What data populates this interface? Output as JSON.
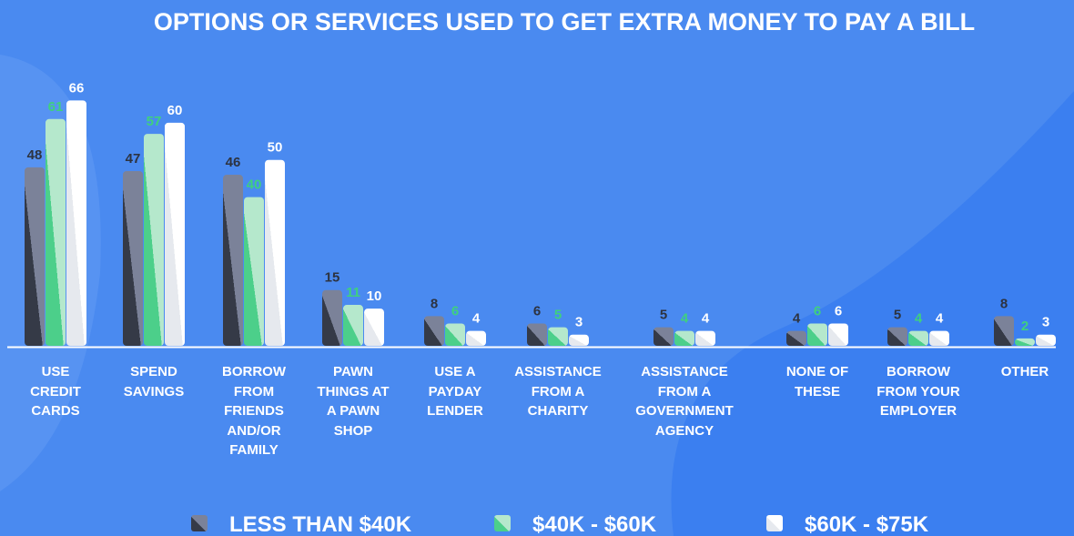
{
  "chart_data": {
    "type": "bar",
    "title": "OPTIONS OR SERVICES USED TO GET EXTRA MONEY TO PAY A BILL",
    "categories": [
      "USE CREDIT CARDS",
      "SPEND SAVINGS",
      "BORROW FROM FRIENDS AND/OR FAMILY",
      "PAWN THINGS AT A PAWN SHOP",
      "USE A PAYDAY LENDER",
      "ASSISTANCE FROM A CHARITY",
      "ASSISTANCE FROM A GOVERNMENT AGENCY",
      "NONE OF THESE",
      "BORROW FROM YOUR EMPLOYER",
      "OTHER"
    ],
    "series": [
      {
        "name": "LESS THAN $40K",
        "color": "#7b8299",
        "values": [
          48,
          47,
          46,
          15,
          8,
          6,
          5,
          4,
          5,
          8
        ]
      },
      {
        "name": "$40K - $60K",
        "color": "#4ccf8a",
        "values": [
          61,
          57,
          40,
          11,
          6,
          5,
          4,
          6,
          4,
          2
        ]
      },
      {
        "name": "$60K - $75K",
        "color": "#f0f2f5",
        "values": [
          66,
          60,
          50,
          10,
          4,
          3,
          4,
          6,
          4,
          3
        ]
      }
    ],
    "ylim": [
      0,
      70
    ],
    "legend": "bottom"
  }
}
